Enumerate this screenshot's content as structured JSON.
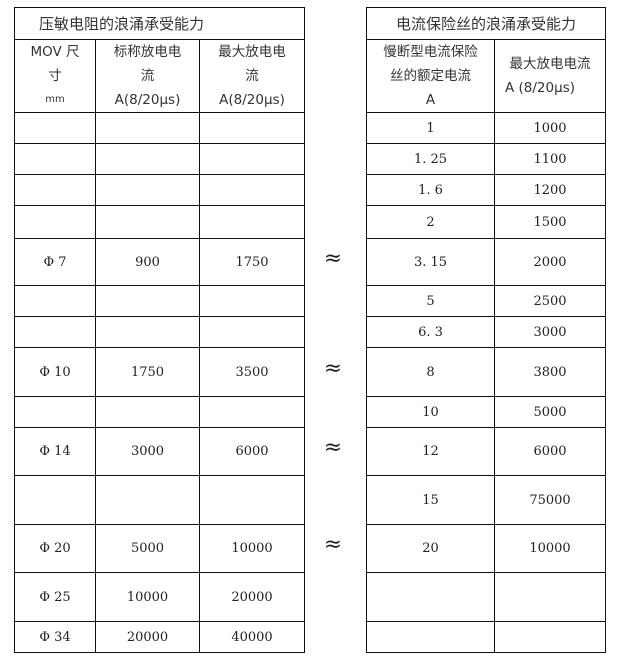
{
  "left_table": {
    "title": "压敏电阻的浪涌承受能力",
    "headers": [
      [
        "MOV 尺",
        "寸",
        "mm"
      ],
      [
        "标称放电电",
        "流",
        "A(8/20µs)"
      ],
      [
        "最大放电电",
        "流",
        "A(8/20µs)"
      ]
    ],
    "rows": [
      [
        "",
        "",
        ""
      ],
      [
        "",
        "",
        ""
      ],
      [
        "",
        "",
        ""
      ],
      [
        "",
        "",
        ""
      ],
      [
        "Φ  7",
        "900",
        "1750"
      ],
      [
        "",
        "",
        ""
      ],
      [
        "",
        "",
        ""
      ],
      [
        "Φ  10",
        "1750",
        "3500"
      ],
      [
        "",
        "",
        ""
      ],
      [
        "Φ  14",
        "3000",
        "6000"
      ],
      [
        "",
        "",
        ""
      ],
      [
        "Φ  20",
        "5000",
        "10000"
      ],
      [
        "Φ  25",
        "10000",
        "20000"
      ],
      [
        "Φ  34",
        "20000",
        "40000"
      ]
    ]
  },
  "approx_symbol": "≈",
  "right_table": {
    "title": "电流保险丝的浪涌承受能力",
    "headers": [
      [
        "慢断型电流保险",
        "丝的额定电流",
        "A"
      ],
      [
        "最大放电电流",
        "A    (8/20µs)"
      ]
    ],
    "rows": [
      [
        "1",
        "1000"
      ],
      [
        "1. 25",
        "1100"
      ],
      [
        "1. 6",
        "1200"
      ],
      [
        "2",
        "1500"
      ],
      [
        "3. 15",
        "2000"
      ],
      [
        "5",
        "2500"
      ],
      [
        "6. 3",
        "3000"
      ],
      [
        "8",
        "3800"
      ],
      [
        "10",
        "5000"
      ],
      [
        "12",
        "6000"
      ],
      [
        "15",
        "75000"
      ],
      [
        "20",
        "10000"
      ],
      [
        "",
        ""
      ],
      [
        "",
        ""
      ]
    ]
  }
}
